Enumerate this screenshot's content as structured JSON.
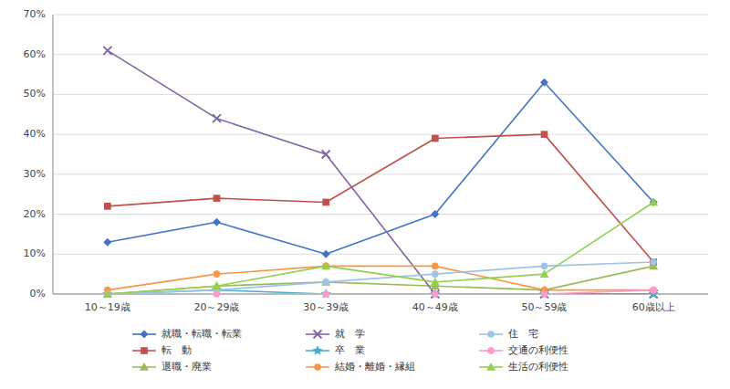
{
  "chart_data": {
    "type": "line",
    "categories": [
      "10～19歳",
      "20～29歳",
      "30～39歳",
      "40～49歳",
      "50～59歳",
      "60歳以上"
    ],
    "series": [
      {
        "name": "就職・転職・転業",
        "color": "#4472C4",
        "marker": "diamond",
        "values": [
          13,
          18,
          10,
          20,
          53,
          23
        ]
      },
      {
        "name": "転　動",
        "color": "#C0504D",
        "marker": "square",
        "values": [
          22,
          24,
          23,
          39,
          40,
          8
        ]
      },
      {
        "name": "退職・廃業",
        "color": "#9BBB59",
        "marker": "triangle",
        "values": [
          0,
          2,
          3,
          2,
          1,
          7
        ]
      },
      {
        "name": "就　学",
        "color": "#8064A2",
        "marker": "x",
        "values": [
          61,
          44,
          35,
          0,
          0,
          0
        ]
      },
      {
        "name": "卒　業",
        "color": "#4BACC6",
        "marker": "star",
        "values": [
          0,
          1,
          0,
          0,
          0,
          0
        ]
      },
      {
        "name": "結婚・離婚・縁組",
        "color": "#F79646",
        "marker": "circle",
        "values": [
          1,
          5,
          7,
          7,
          1,
          1
        ]
      },
      {
        "name": "住　宅",
        "color": "#9DC3E6",
        "marker": "circle",
        "values": [
          0,
          1,
          3,
          5,
          7,
          8
        ]
      },
      {
        "name": "交通の利便性",
        "color": "#FF99CC",
        "marker": "circle",
        "values": [
          0,
          0,
          0,
          0,
          0,
          1
        ]
      },
      {
        "name": "生活の利便性",
        "color": "#92D050",
        "marker": "triangle",
        "values": [
          0,
          2,
          7,
          3,
          5,
          23
        ]
      }
    ],
    "ylim": [
      0,
      70
    ],
    "yticks": [
      {
        "value": 0,
        "label": "0%"
      },
      {
        "value": 10,
        "label": "10%"
      },
      {
        "value": 20,
        "label": "20%"
      },
      {
        "value": 30,
        "label": "30%"
      },
      {
        "value": 40,
        "label": "40%"
      },
      {
        "value": 50,
        "label": "50%"
      },
      {
        "value": 60,
        "label": "60%"
      },
      {
        "value": 70,
        "label": "70%"
      }
    ],
    "grid": true,
    "legend": "bottom"
  }
}
